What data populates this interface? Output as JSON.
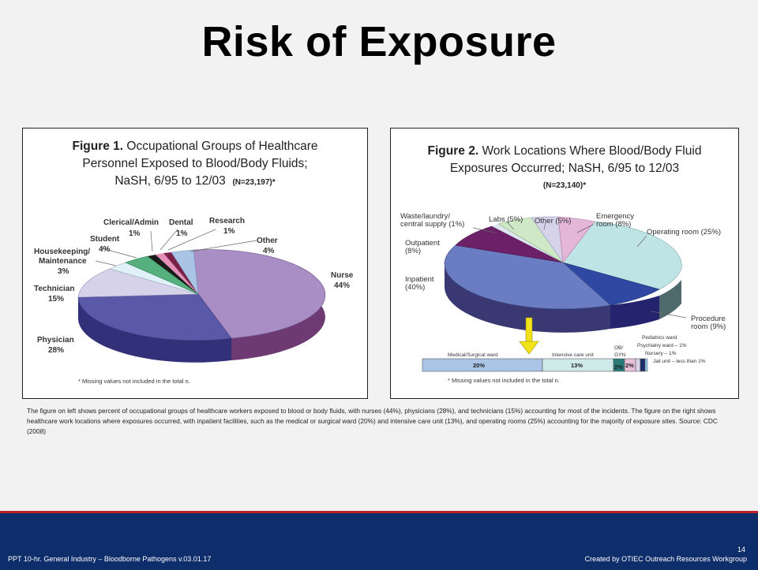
{
  "slide": {
    "title": "Risk of Exposure",
    "caption": "The figure on left shows percent of occupational groups of healthcare workers exposed to blood or body fluids, with nurses (44%), physicians (28%), and technicians (15%) accounting for most of the incidents. The figure on the right shows healthcare work locations where exposures occurred, with inpatient facilities, such as the medical or surgical ward (20%) and intensive care unit (13%), and operating rooms (25%) accounting for the majority of exposure sites. Source: CDC (2008)",
    "page_number": "14",
    "footer_left": "PPT 10-hr. General Industry – Bloodborne Pathogens v.03.01.17",
    "footer_right": "Created by OTIEC Outreach Resources Workgroup"
  },
  "figure1": {
    "heading": "Figure 1.",
    "title_rest": "Occupational Groups of Healthcare",
    "title_line2": "Personnel Exposed to Blood/Body Fluids;",
    "title_line3": "NaSH, 6/95 to 12/03",
    "n": "(N=23,197)*",
    "footnote": "* Missing values not included in the total n.",
    "labels": {
      "clerical": "Clerical/Admin",
      "clerical_pct": "1%",
      "dental": "Dental",
      "dental_pct": "1%",
      "research": "Research",
      "research_pct": "1%",
      "student": "Student",
      "student_pct": "4%",
      "other": "Other",
      "other_pct": "4%",
      "housekeeping_1": "Housekeeping/",
      "housekeeping_2": "Maintenance",
      "housekeeping_pct": "3%",
      "nurse": "Nurse",
      "nurse_pct": "44%",
      "technician": "Technician",
      "technician_pct": "15%",
      "physician": "Physician",
      "physician_pct": "28%"
    }
  },
  "figure2": {
    "heading": "Figure 2.",
    "title_rest": "Work Locations Where Blood/Body Fluid",
    "title_line2": "Exposures Occurred; NaSH, 6/95 to 12/03",
    "n": "(N=23,140)*",
    "footnote": "* Missing values not included in the total n.",
    "labels": {
      "waste_1": "Waste/laundry/",
      "waste_2": "central supply (1%)",
      "labs": "Labs (5%)",
      "other": "Other (5%)",
      "emergency_1": "Emergency",
      "emergency_2": "room (8%)",
      "operating": "Operating room (25%)",
      "outpatient_1": "Outpatient",
      "outpatient_2": "(8%)",
      "inpatient_1": "Inpatient",
      "inpatient_2": "(40%)",
      "procedure_1": "Procedure",
      "procedure_2": "room (9%)"
    },
    "bar": {
      "medsurg": "Medical/Surgical ward",
      "icu": "Intensive care unit",
      "obgyn_1": "OB/",
      "obgyn_2": "GYN",
      "pediatrics": "Pediatrics ward",
      "psych": "Psychiatry ward – 1%",
      "nursery": "Nursery – 1%",
      "jail": "Jail unit – less than 1%",
      "medsurg_pct": "20%",
      "icu_pct": "13%",
      "obgyn_pct": "2%",
      "peds_pct": "2%"
    }
  },
  "colors": {
    "footer_bg": "#0e2d6b",
    "footer_rule": "#c0202a",
    "nurse": "#a88ec4",
    "physician": "#5a59a8",
    "technician": "#d6d2ea",
    "operating": "#bfe4e6",
    "inpatient": "#6a7dc2"
  },
  "chart_data": [
    {
      "type": "pie",
      "title": "Figure 1. Occupational Groups of Healthcare Personnel Exposed to Blood/Body Fluids; NaSH, 6/95 to 12/03",
      "categories": [
        "Nurse",
        "Physician",
        "Technician",
        "Housekeeping/Maintenance",
        "Student",
        "Clerical/Admin",
        "Dental",
        "Research",
        "Other"
      ],
      "values": [
        44,
        28,
        15,
        3,
        4,
        1,
        1,
        1,
        4
      ],
      "unit": "%"
    },
    {
      "type": "pie",
      "title": "Figure 2. Work Locations Where Blood/Body Fluid Exposures Occurred; NaSH, 6/95 to 12/03",
      "categories": [
        "Inpatient",
        "Operating room",
        "Procedure room",
        "Emergency room",
        "Outpatient",
        "Labs",
        "Other",
        "Waste/laundry/central supply"
      ],
      "values": [
        40,
        25,
        9,
        8,
        8,
        5,
        5,
        1
      ],
      "unit": "%"
    },
    {
      "type": "bar",
      "title": "",
      "categories": [
        "Medical/Surgical ward",
        "Intensive care unit",
        "OB/GYN",
        "Pediatrics ward"
      ],
      "values": [
        20,
        13,
        2,
        2
      ],
      "unit": "%"
    }
  ]
}
